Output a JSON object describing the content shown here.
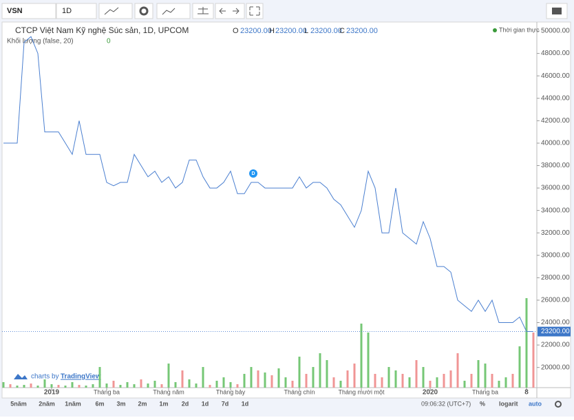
{
  "toolbar": {
    "symbol": "VSN",
    "interval": "1D"
  },
  "legend": {
    "title": "CTCP Việt Nam Kỹ nghệ Súc sản, 1D, UPCOM",
    "o_label": "O",
    "o": "23200.00",
    "h_label": "H",
    "h": "23200.00",
    "l_label": "L",
    "l": "23200.00",
    "c_label": "C",
    "c": "23200.00",
    "volume": "Khối lượng (false, 20)",
    "volume_value": "0"
  },
  "status": "Thời gian thực",
  "branding": {
    "prefix": "charts by",
    "name": "TradingView"
  },
  "marker": "D",
  "ranges": [
    "5năm",
    "2năm",
    "1năm",
    "6m",
    "3m",
    "2m",
    "1m",
    "2d",
    "1d",
    "7d",
    "1d"
  ],
  "clock": "09:06:32 (UTC+7)",
  "percent": "%",
  "log": "logarit",
  "auto": "auto",
  "chart_data": {
    "type": "line",
    "color": "#4a7fd0",
    "categories": [
      null,
      null,
      null,
      null,
      null,
      null,
      null,
      "2019",
      null,
      null,
      null,
      null,
      null,
      null,
      null,
      "Tháng ba",
      null,
      null,
      null,
      null,
      null,
      null,
      null,
      null,
      "Tháng năm",
      null,
      null,
      null,
      null,
      null,
      null,
      null,
      null,
      "Tháng bảy",
      null,
      null,
      null,
      null,
      null,
      null,
      null,
      null,
      null,
      "Tháng chín",
      null,
      null,
      null,
      null,
      null,
      null,
      null,
      null,
      "Tháng mười một",
      null,
      null,
      null,
      null,
      null,
      null,
      null,
      null,
      null,
      "2020",
      null,
      null,
      null,
      null,
      null,
      null,
      null,
      "Tháng ba",
      null,
      null,
      null,
      null,
      null,
      "8",
      null
    ],
    "values": [
      40000,
      40000,
      40000,
      49000,
      49500,
      48000,
      41000,
      41000,
      41000,
      40000,
      39000,
      42000,
      39000,
      39000,
      39000,
      36500,
      36200,
      36500,
      36500,
      39000,
      38000,
      37000,
      37500,
      36500,
      37000,
      36000,
      36500,
      38500,
      38500,
      37000,
      36000,
      36000,
      36500,
      37500,
      35500,
      35500,
      36500,
      36500,
      36000,
      36000,
      36000,
      36000,
      36000,
      37000,
      36000,
      36500,
      36500,
      36000,
      35000,
      34500,
      33500,
      32500,
      34000,
      37500,
      36000,
      32000,
      32000,
      36000,
      32000,
      31500,
      31000,
      33000,
      31500,
      29000,
      29000,
      28500,
      26000,
      25500,
      25000,
      26000,
      25000,
      26000,
      24000,
      24000,
      24000,
      24500,
      23200,
      23200
    ],
    "ylim": [
      18200,
      50800
    ],
    "yticks": [
      {
        "value": 20000,
        "label": "20000.00"
      },
      {
        "value": 22000,
        "label": "22000.00"
      },
      {
        "value": 24000,
        "label": "24000.00"
      },
      {
        "value": 26000,
        "label": "26000.00"
      },
      {
        "value": 28000,
        "label": "28000.00"
      },
      {
        "value": 30000,
        "label": "30000.00"
      },
      {
        "value": 32000,
        "label": "32000.00"
      },
      {
        "value": 34000,
        "label": "34000.00"
      },
      {
        "value": 36000,
        "label": "36000.00"
      },
      {
        "value": 38000,
        "label": "38000.00"
      },
      {
        "value": 40000,
        "label": "40000.00"
      },
      {
        "value": 42000,
        "label": "42000.00"
      },
      {
        "value": 44000,
        "label": "44000.00"
      },
      {
        "value": 46000,
        "label": "46000.00"
      },
      {
        "value": 48000,
        "label": "48000.00"
      },
      {
        "value": 50000,
        "label": "50000.00"
      }
    ],
    "last": {
      "value": 23200,
      "label": "23200.00"
    },
    "volume": {
      "ylim": [
        0,
        140
      ],
      "values": [
        8,
        5,
        3,
        4,
        6,
        3,
        12,
        5,
        4,
        3,
        8,
        4,
        3,
        5,
        30,
        6,
        10,
        4,
        8,
        5,
        12,
        6,
        10,
        5,
        35,
        8,
        25,
        12,
        6,
        30,
        4,
        10,
        15,
        8,
        5,
        20,
        30,
        25,
        22,
        18,
        28,
        15,
        10,
        45,
        20,
        30,
        50,
        40,
        15,
        10,
        25,
        35,
        93,
        80,
        20,
        15,
        30,
        25,
        20,
        15,
        40,
        30,
        10,
        15,
        20,
        25,
        50,
        10,
        20,
        40,
        35,
        20,
        10,
        15,
        20,
        60,
        130,
        80
      ],
      "colors": [
        "#76c776",
        "#f09595",
        "#76c776",
        "#76c776",
        "#f09595",
        "#76c776",
        "#76c776",
        "#76c776",
        "#f09595",
        "#76c776",
        "#76c776",
        "#f09595",
        "#76c776",
        "#76c776",
        "#76c776",
        "#76c776",
        "#f09595",
        "#76c776",
        "#76c776",
        "#76c776",
        "#f09595",
        "#76c776",
        "#76c776",
        "#f09595",
        "#76c776",
        "#76c776",
        "#f09595",
        "#76c776",
        "#76c776",
        "#76c776",
        "#f09595",
        "#76c776",
        "#76c776",
        "#76c776",
        "#f09595",
        "#76c776",
        "#76c776",
        "#f09595",
        "#76c776",
        "#f09595",
        "#76c776",
        "#76c776",
        "#f09595",
        "#76c776",
        "#f09595",
        "#76c776",
        "#76c776",
        "#76c776",
        "#f09595",
        "#76c776",
        "#f09595",
        "#f09595",
        "#76c776",
        "#76c776",
        "#f09595",
        "#f09595",
        "#76c776",
        "#76c776",
        "#f09595",
        "#76c776",
        "#f09595",
        "#76c776",
        "#f09595",
        "#76c776",
        "#f09595",
        "#f09595",
        "#f09595",
        "#76c776",
        "#f09595",
        "#76c776",
        "#76c776",
        "#f09595",
        "#76c776",
        "#76c776",
        "#f09595",
        "#76c776",
        "#76c776",
        "#f09595"
      ]
    }
  }
}
